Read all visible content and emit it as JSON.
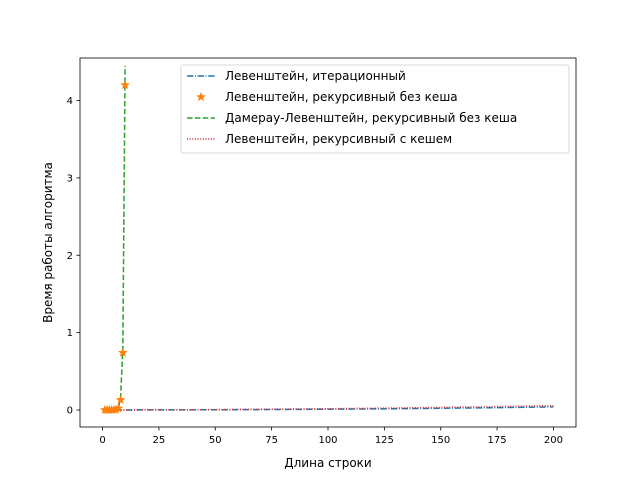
{
  "chart_data": {
    "type": "line",
    "xlabel": "Длина строки",
    "ylabel": "Время работы алгоритма",
    "xlim": [
      -10,
      210
    ],
    "ylim": [
      -0.22,
      4.55
    ],
    "xticks": [
      0,
      25,
      50,
      75,
      100,
      125,
      150,
      175,
      200
    ],
    "xtick_labels": [
      "0",
      "25",
      "50",
      "75",
      "100",
      "125",
      "150",
      "175",
      "200"
    ],
    "yticks": [
      0,
      1,
      2,
      3,
      4
    ],
    "ytick_labels": [
      "0",
      "1",
      "2",
      "3",
      "4"
    ],
    "grid": false,
    "legend_position": "top-right",
    "series": [
      {
        "name": "Левенштейн, итерационный",
        "color": "#1f77b4",
        "style": "dashdot",
        "marker": "none",
        "x": [
          1,
          10,
          25,
          50,
          75,
          100,
          125,
          150,
          175,
          200
        ],
        "y": [
          0,
          0.0002,
          0.001,
          0.003,
          0.006,
          0.01,
          0.015,
          0.022,
          0.03,
          0.04
        ]
      },
      {
        "name": "Левенштейн, рекурсивный без кеша",
        "color": "#ff7f0e",
        "style": "none",
        "marker": "star",
        "x": [
          1,
          2,
          3,
          4,
          5,
          6,
          7,
          8,
          9,
          10
        ],
        "y": [
          0,
          0,
          0,
          0,
          0.001,
          0.004,
          0.02,
          0.13,
          0.74,
          4.2
        ]
      },
      {
        "name": "Дамерау-Левенштейн, рекурсивный без кеша",
        "color": "#2ca02c",
        "style": "dashed",
        "marker": "none",
        "x": [
          1,
          2,
          3,
          4,
          5,
          6,
          7,
          8,
          9,
          10
        ],
        "y": [
          0,
          0,
          0,
          0,
          0.001,
          0.005,
          0.025,
          0.15,
          0.8,
          4.45
        ]
      },
      {
        "name": "Левенштейн, рекурсивный с кешем",
        "color": "#d62728",
        "style": "dotted",
        "marker": "none",
        "x": [
          1,
          10,
          25,
          50,
          75,
          100,
          125,
          150,
          175,
          200
        ],
        "y": [
          0,
          0.0003,
          0.0015,
          0.005,
          0.01,
          0.016,
          0.024,
          0.033,
          0.043,
          0.055
        ]
      }
    ]
  }
}
